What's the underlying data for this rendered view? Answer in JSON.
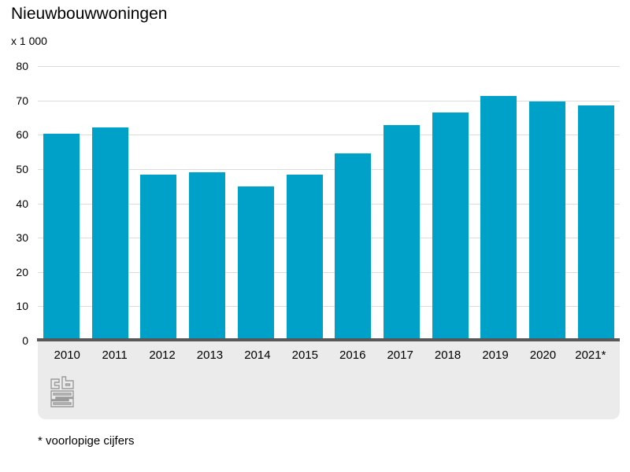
{
  "chart_data": {
    "type": "bar",
    "title": "Nieuwbouwwoningen",
    "unit_label": "x 1 000",
    "categories": [
      "2010",
      "2011",
      "2012",
      "2013",
      "2014",
      "2015",
      "2016",
      "2017",
      "2018",
      "2019",
      "2020",
      "2021*"
    ],
    "values": [
      60.4,
      62.1,
      48.3,
      49.1,
      45.0,
      48.3,
      54.5,
      62.8,
      66.4,
      71.2,
      69.7,
      68.5
    ],
    "xlabel": "",
    "ylabel": "x 1 000",
    "ylim": [
      0,
      80
    ],
    "yticks": [
      0,
      10,
      20,
      30,
      40,
      50,
      60,
      70,
      80
    ],
    "grid": true,
    "legend": "none",
    "bar_color": "#00a1c9",
    "footnote": "* voorlopige cijfers",
    "logo": "cbs-logo"
  }
}
